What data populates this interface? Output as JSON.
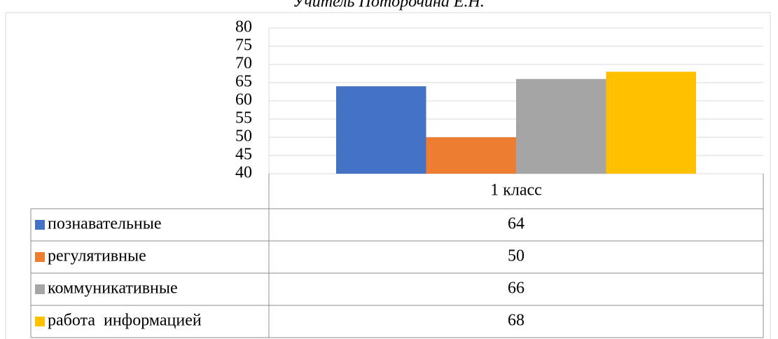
{
  "chart_data": {
    "type": "bar",
    "subtitle": "Учитель Поторочина Е.Н.",
    "categories": [
      "1 класс"
    ],
    "series": [
      {
        "name": "познавательные",
        "color": "#4472c4",
        "values": [
          64
        ]
      },
      {
        "name": "регулятивные",
        "color": "#ed7d31",
        "values": [
          50
        ]
      },
      {
        "name": "коммуникативные",
        "color": "#a5a5a5",
        "values": [
          66
        ]
      },
      {
        "name": "работа  информацией",
        "color": "#ffc000",
        "values": [
          68
        ]
      }
    ],
    "ylim": [
      40,
      80
    ],
    "yticks": [
      40,
      45,
      50,
      55,
      60,
      65,
      70,
      75,
      80
    ],
    "grid": true
  }
}
